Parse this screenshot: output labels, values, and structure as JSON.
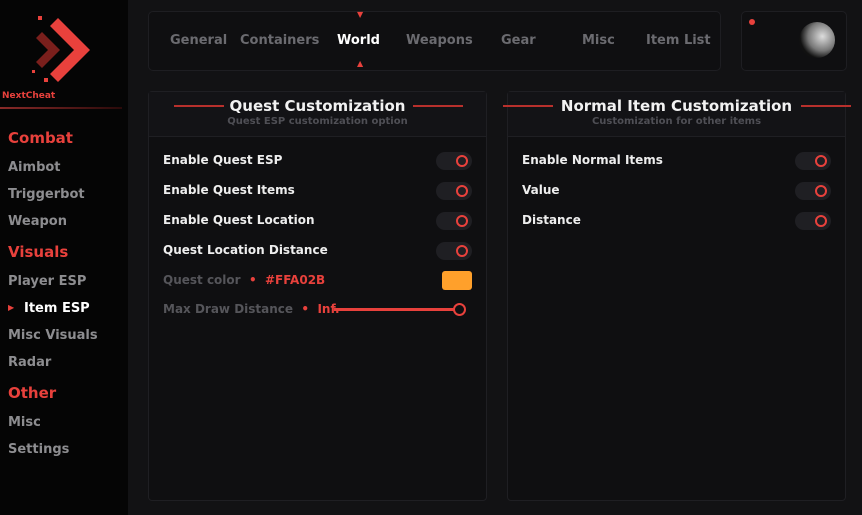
{
  "brand": {
    "name": "NextCheat"
  },
  "sidebar": {
    "sections": [
      {
        "label": "Combat",
        "items": [
          "Aimbot",
          "Triggerbot",
          "Weapon"
        ]
      },
      {
        "label": "Visuals",
        "items": [
          "Player ESP",
          "Item ESP",
          "Misc Visuals",
          "Radar"
        ]
      },
      {
        "label": "Other",
        "items": [
          "Misc",
          "Settings"
        ]
      }
    ],
    "active": "Item ESP"
  },
  "tabs": {
    "items": [
      "General",
      "Containers",
      "World",
      "Weapons",
      "Gear",
      "Misc",
      "Item List"
    ],
    "active": "World"
  },
  "quest": {
    "title": "Quest Customization",
    "subtitle": "Quest ESP customization option",
    "toggles": [
      "Enable Quest ESP",
      "Enable Quest Items",
      "Enable Quest Location",
      "Quest Location Distance"
    ],
    "color_label": "Quest color",
    "color_value": "#FFA02B",
    "distance_label": "Max Draw Distance",
    "distance_value": "Inf.",
    "distance_fraction": 1.0
  },
  "normal": {
    "title": "Normal Item Customization",
    "subtitle": "Customization for other items",
    "toggles": [
      "Enable Normal Items",
      "Value",
      "Distance"
    ]
  },
  "colors": {
    "accent": "#E8413C",
    "quest": "#FFA02B"
  }
}
